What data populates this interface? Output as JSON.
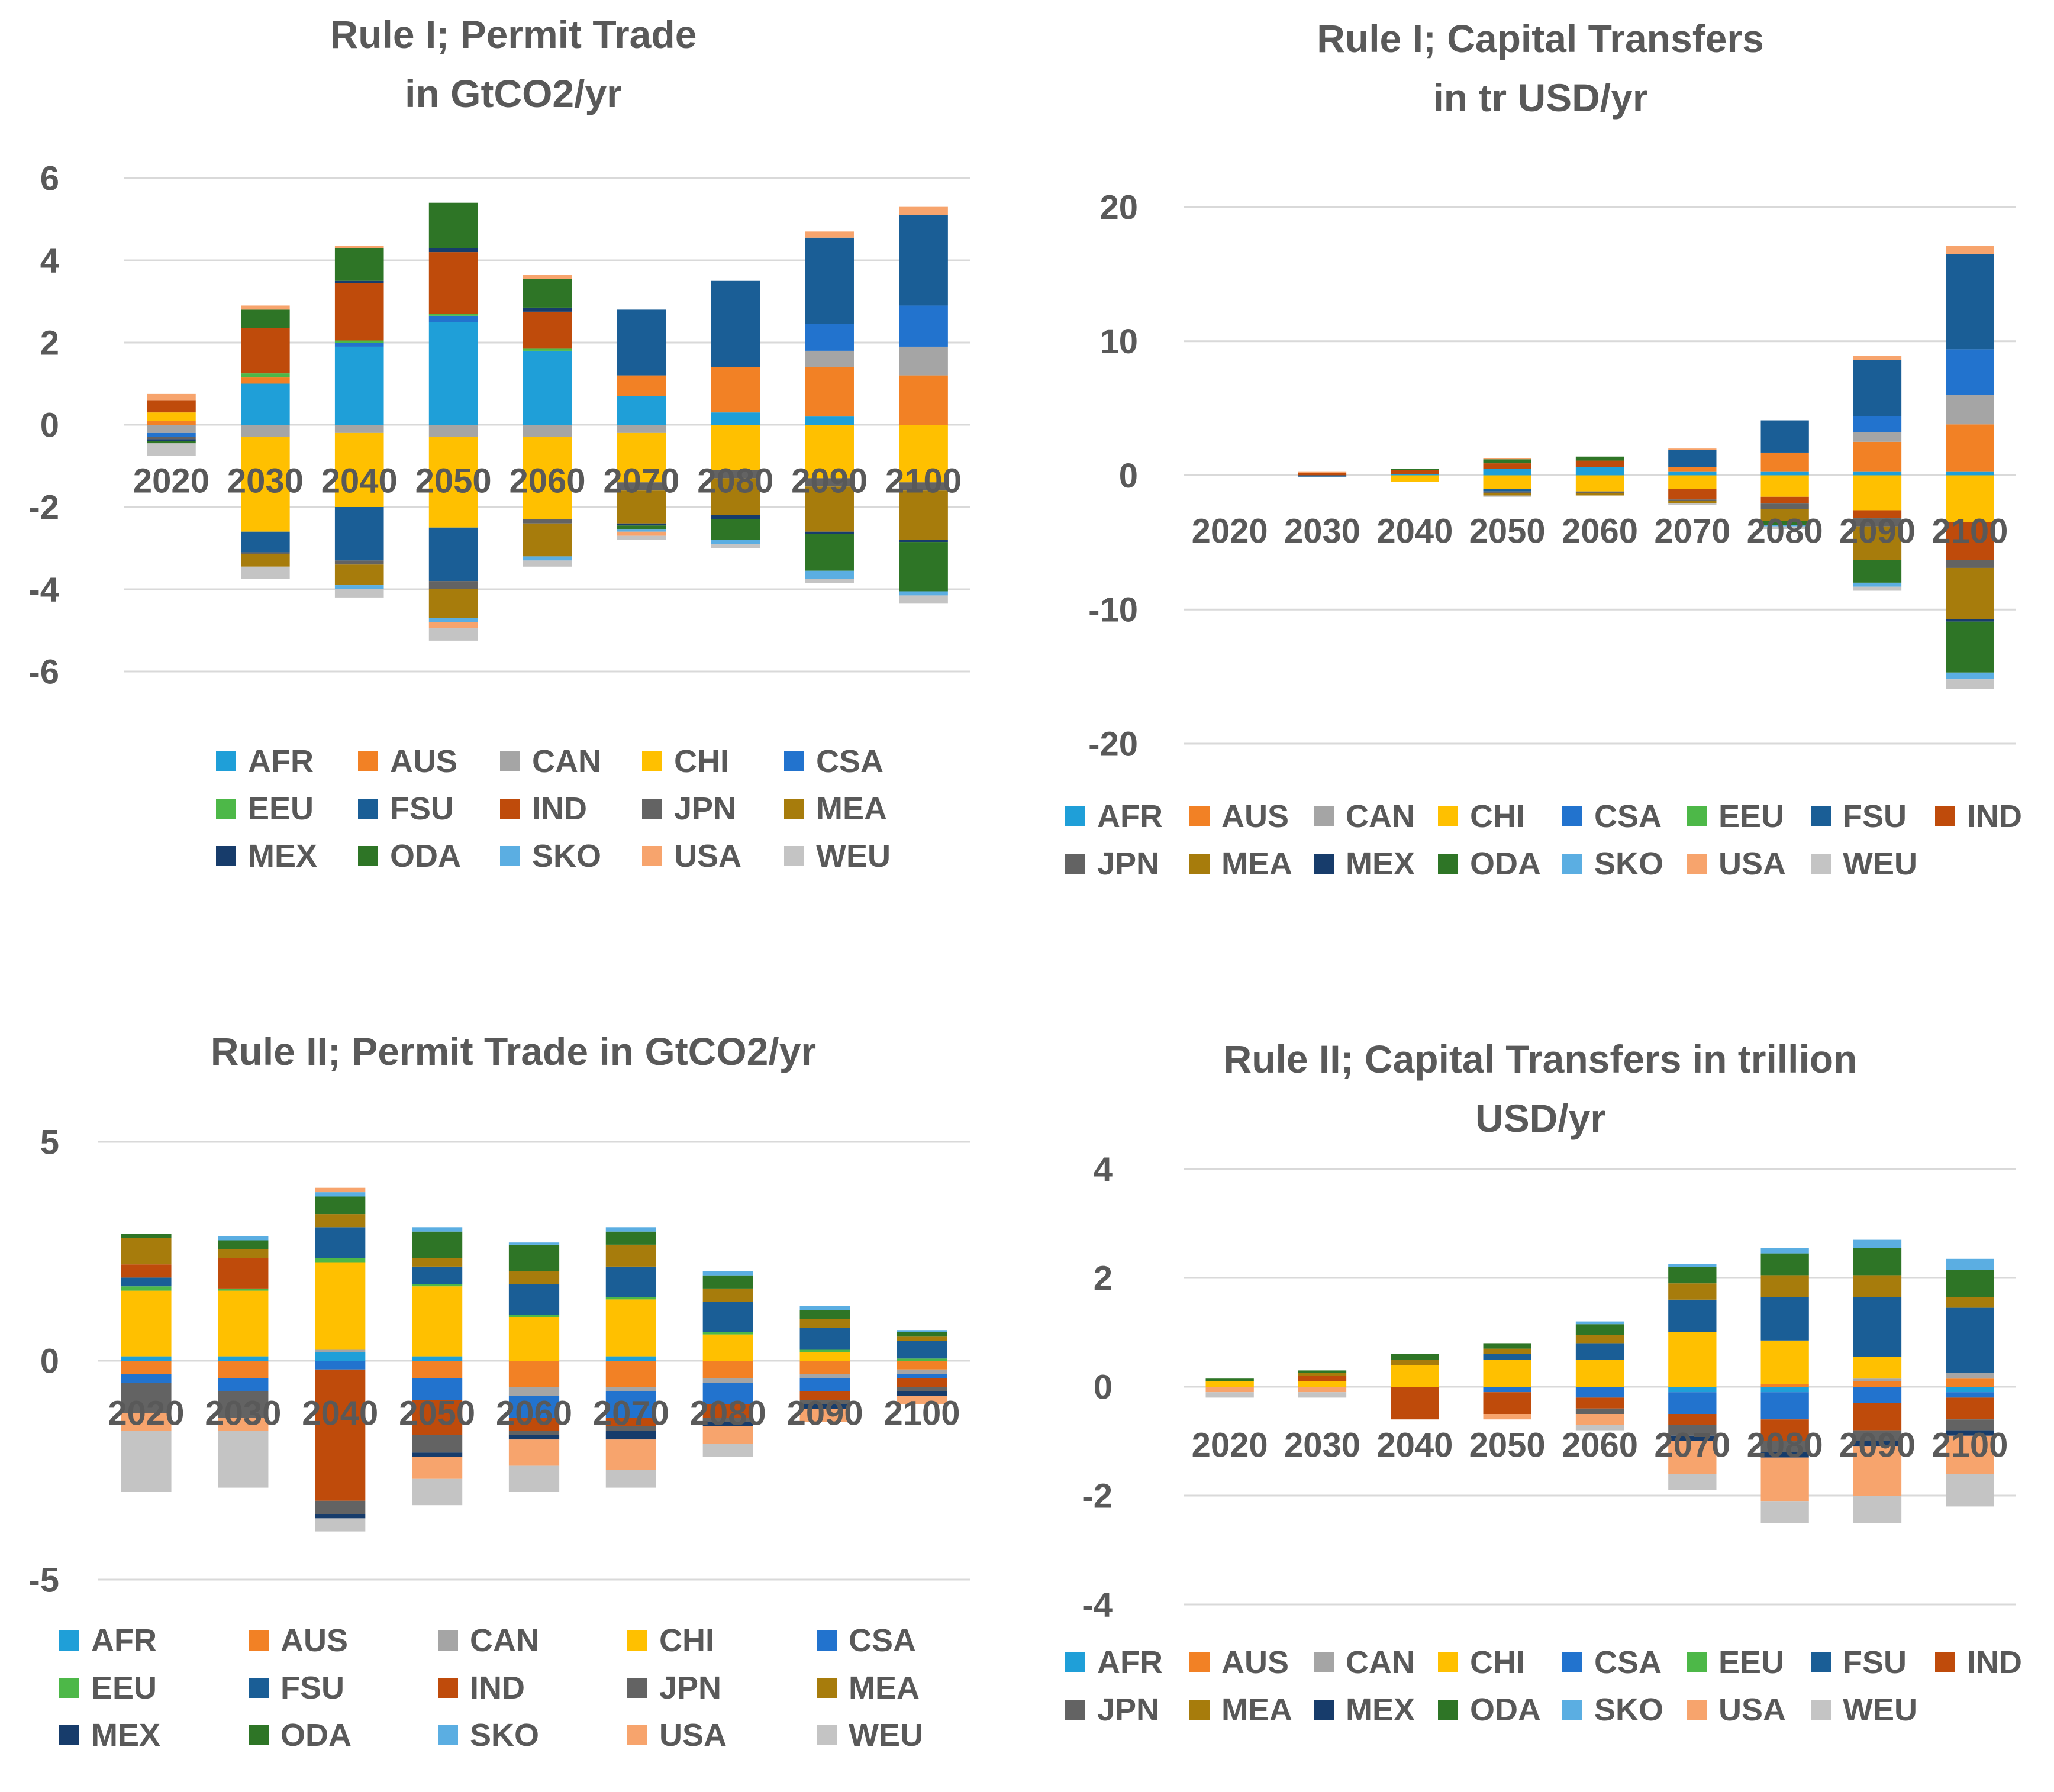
{
  "colors": {
    "AFR": "#1F9FD8",
    "AUS": "#F28125",
    "CAN": "#A5A5A5",
    "CHI": "#FFC000",
    "CSA": "#2273CE",
    "EEU": "#4DB848",
    "FSU": "#1A5E96",
    "IND": "#BF4B0B",
    "JPN": "#636363",
    "MEA": "#A77C0C",
    "MEX": "#173C6B",
    "ODA": "#2E7526",
    "SKO": "#5BAEE2",
    "USA": "#F7A46D",
    "WEU": "#C4C4C4"
  },
  "chart_data": [
    {
      "type": "bar",
      "stacked": true,
      "title_lines": [
        "Rule I;  Permit Trade",
        "in GtCO2/yr"
      ],
      "categories": [
        "2020",
        "2030",
        "2040",
        "2050",
        "2060",
        "2070",
        "2080",
        "2090",
        "2100"
      ],
      "ylim": [
        -6,
        6
      ],
      "yticks": [
        6,
        4,
        2,
        0,
        -2,
        -4,
        -6
      ],
      "ytick_labels": [
        "6",
        "4",
        "2",
        "0",
        "-2",
        "-4",
        "-6"
      ],
      "legend": [
        "AFR",
        "AUS",
        "CAN",
        "CHI",
        "CSA",
        "EEU",
        "FSU",
        "IND",
        "JPN",
        "MEA",
        "MEX",
        "ODA",
        "SKO",
        "USA",
        "WEU"
      ],
      "series": [
        {
          "name": "AFR",
          "values": [
            0,
            1.0,
            1.9,
            2.5,
            1.8,
            0.7,
            0.3,
            0.2,
            0
          ]
        },
        {
          "name": "AUS",
          "values": [
            0.1,
            0.15,
            0,
            0,
            0,
            0.5,
            1.1,
            1.2,
            1.2
          ]
        },
        {
          "name": "CAN",
          "values": [
            -0.2,
            -0.3,
            -0.2,
            -0.3,
            -0.3,
            -0.2,
            0,
            0.4,
            0.7
          ]
        },
        {
          "name": "CHI",
          "values": [
            0.2,
            -2.3,
            -1.8,
            -2.2,
            -2.0,
            -1.2,
            -1.1,
            -1.3,
            -1.4
          ]
        },
        {
          "name": "CSA",
          "values": [
            -0.1,
            0,
            0.1,
            0.15,
            0,
            0,
            0,
            0.65,
            1.0
          ]
        },
        {
          "name": "EEU",
          "values": [
            0,
            0.1,
            0.05,
            0.05,
            0.05,
            0,
            0,
            0,
            0
          ]
        },
        {
          "name": "FSU",
          "values": [
            0,
            -0.5,
            -1.3,
            -1.3,
            0,
            1.6,
            2.1,
            2.1,
            2.2
          ]
        },
        {
          "name": "IND",
          "values": [
            0.3,
            1.1,
            1.4,
            1.5,
            0.9,
            0,
            0,
            0,
            0
          ]
        },
        {
          "name": "JPN",
          "values": [
            -0.05,
            -0.05,
            -0.1,
            -0.2,
            -0.1,
            -0.2,
            -0.2,
            -0.2,
            -0.2
          ]
        },
        {
          "name": "MEA",
          "values": [
            0,
            -0.3,
            -0.5,
            -0.7,
            -0.8,
            -0.8,
            -0.9,
            -1.1,
            -1.2
          ]
        },
        {
          "name": "MEX",
          "values": [
            -0.05,
            0,
            0.05,
            0.1,
            0.1,
            -0.05,
            -0.1,
            -0.05,
            -0.05
          ]
        },
        {
          "name": "ODA",
          "values": [
            -0.05,
            0.45,
            0.8,
            1.1,
            0.7,
            -0.1,
            -0.5,
            -0.9,
            -1.2
          ]
        },
        {
          "name": "SKO",
          "values": [
            0,
            0,
            -0.1,
            -0.1,
            -0.1,
            -0.05,
            -0.1,
            -0.2,
            -0.1
          ]
        },
        {
          "name": "USA",
          "values": [
            0.15,
            0.1,
            0.05,
            -0.15,
            0.1,
            -0.1,
            0,
            0.15,
            0.2
          ]
        },
        {
          "name": "WEU",
          "values": [
            -0.3,
            -0.3,
            -0.2,
            -0.3,
            -0.15,
            -0.1,
            -0.1,
            -0.1,
            -0.2
          ]
        }
      ]
    },
    {
      "type": "bar",
      "stacked": true,
      "title_lines": [
        "Rule I; Capital Transfers",
        "in tr USD/yr"
      ],
      "categories": [
        "2020",
        "2030",
        "2040",
        "2050",
        "2060",
        "2070",
        "2080",
        "2090",
        "2100"
      ],
      "ylim": [
        -20,
        20
      ],
      "yticks": [
        20,
        10,
        0,
        -10,
        -20
      ],
      "ytick_labels": [
        "20",
        "10",
        "0",
        "-10",
        "-20"
      ],
      "legend": [
        "AFR",
        "AUS",
        "CAN",
        "CHI",
        "CSA",
        "EEU",
        "FSU",
        "IND",
        "JPN",
        "MEA",
        "MEX",
        "ODA",
        "SKO",
        "USA",
        "WEU"
      ],
      "series": [
        {
          "name": "AFR",
          "values": [
            0,
            0,
            0.1,
            0.5,
            0.6,
            0.3,
            0.3,
            0.3,
            0.3
          ]
        },
        {
          "name": "AUS",
          "values": [
            0,
            0,
            0,
            0,
            0,
            0.3,
            1.4,
            2.2,
            3.5
          ]
        },
        {
          "name": "CAN",
          "values": [
            0,
            0,
            0,
            0,
            0,
            0,
            0,
            0.7,
            2.2
          ]
        },
        {
          "name": "CHI",
          "values": [
            0,
            0,
            -0.5,
            -1.0,
            -1.2,
            -1.0,
            -1.6,
            -2.6,
            -3.5
          ]
        },
        {
          "name": "CSA",
          "values": [
            0,
            0,
            0,
            0,
            0,
            0,
            0,
            1.2,
            3.4
          ]
        },
        {
          "name": "EEU",
          "values": [
            0,
            0,
            0,
            0,
            0,
            0,
            0,
            0,
            0
          ]
        },
        {
          "name": "FSU",
          "values": [
            0,
            -0.1,
            0,
            -0.2,
            0,
            1.3,
            2.4,
            4.2,
            7.1
          ]
        },
        {
          "name": "IND",
          "values": [
            0,
            0.2,
            0.3,
            0.4,
            0.5,
            -0.8,
            -0.5,
            -0.6,
            -2.8
          ]
        },
        {
          "name": "JPN",
          "values": [
            0,
            0,
            0,
            -0.1,
            -0.1,
            -0.1,
            -0.4,
            -0.6,
            -0.6
          ]
        },
        {
          "name": "MEA",
          "values": [
            0,
            0,
            0,
            -0.2,
            -0.2,
            -0.2,
            -0.9,
            -2.5,
            -3.8
          ]
        },
        {
          "name": "MEX",
          "values": [
            0,
            0,
            0,
            0,
            0,
            0,
            0,
            0,
            -0.2
          ]
        },
        {
          "name": "ODA",
          "values": [
            0,
            0,
            0.1,
            0.3,
            0.3,
            0,
            -0.3,
            -1.7,
            -3.8
          ]
        },
        {
          "name": "SKO",
          "values": [
            0,
            0,
            0,
            0,
            0,
            0,
            -0.1,
            -0.3,
            -0.5
          ]
        },
        {
          "name": "USA",
          "values": [
            0,
            0.1,
            0,
            0.1,
            0,
            0.1,
            0,
            0.3,
            0.6
          ]
        },
        {
          "name": "WEU",
          "values": [
            0,
            0,
            0,
            -0.1,
            0,
            -0.1,
            -0.2,
            -0.3,
            -0.7
          ]
        }
      ]
    },
    {
      "type": "bar",
      "stacked": true,
      "title_lines": [
        "Rule II;  Permit Trade in GtCO2/yr"
      ],
      "categories": [
        "2020",
        "2030",
        "2040",
        "2050",
        "2060",
        "2070",
        "2080",
        "2090",
        "2100"
      ],
      "ylim": [
        -5,
        5
      ],
      "yticks": [
        5,
        0,
        -5
      ],
      "ytick_labels": [
        "5",
        "0",
        "-5"
      ],
      "legend": [
        "AFR",
        "AUS",
        "CAN",
        "CHI",
        "CSA",
        "EEU",
        "FSU",
        "IND",
        "JPN",
        "MEA",
        "MEX",
        "ODA",
        "SKO",
        "USA",
        "WEU"
      ],
      "series": [
        {
          "name": "AFR",
          "values": [
            0.1,
            0.1,
            0.2,
            0.1,
            0,
            0.1,
            0,
            0,
            0
          ]
        },
        {
          "name": "AUS",
          "values": [
            -0.3,
            -0.4,
            0,
            -0.4,
            -0.6,
            -0.6,
            -0.4,
            -0.3,
            -0.2
          ]
        },
        {
          "name": "CAN",
          "values": [
            0,
            0,
            0.05,
            0,
            -0.2,
            -0.1,
            -0.1,
            -0.1,
            -0.1
          ]
        },
        {
          "name": "CHI",
          "values": [
            1.5,
            1.5,
            2.0,
            1.6,
            1.0,
            1.3,
            0.6,
            0.2,
            0
          ]
        },
        {
          "name": "CSA",
          "values": [
            -0.2,
            -0.3,
            -0.2,
            -0.5,
            -0.5,
            -0.6,
            -0.5,
            -0.3,
            -0.1
          ]
        },
        {
          "name": "EEU",
          "values": [
            0.1,
            0.05,
            0.1,
            0.05,
            0.05,
            0.05,
            0.05,
            0.05,
            0.05
          ]
        },
        {
          "name": "FSU",
          "values": [
            0.2,
            0,
            0.7,
            0.4,
            0.7,
            0.7,
            0.7,
            0.5,
            0.4
          ]
        },
        {
          "name": "IND",
          "values": [
            0.3,
            0.7,
            -3.0,
            -0.8,
            -0.3,
            -0.2,
            -0.3,
            -0.2,
            -0.2
          ]
        },
        {
          "name": "JPN",
          "values": [
            -0.7,
            -0.6,
            -0.3,
            -0.4,
            -0.1,
            -0.1,
            -0.1,
            -0.1,
            -0.1
          ]
        },
        {
          "name": "MEA",
          "values": [
            0.6,
            0.2,
            0.3,
            0.2,
            0.3,
            0.5,
            0.3,
            0.2,
            0.1
          ]
        },
        {
          "name": "MEX",
          "values": [
            0,
            0,
            -0.1,
            -0.1,
            -0.1,
            -0.2,
            -0.1,
            -0.1,
            -0.1
          ]
        },
        {
          "name": "ODA",
          "values": [
            0.1,
            0.2,
            0.4,
            0.6,
            0.6,
            0.3,
            0.3,
            0.2,
            0.1
          ]
        },
        {
          "name": "SKO",
          "values": [
            0,
            0.1,
            0.1,
            0.1,
            0.05,
            0.1,
            0.1,
            0.1,
            0.05
          ]
        },
        {
          "name": "USA",
          "values": [
            -0.4,
            -0.3,
            0.1,
            -0.5,
            -0.6,
            -0.7,
            -0.4,
            -0.3,
            -0.2
          ]
        },
        {
          "name": "WEU",
          "values": [
            -1.4,
            -1.3,
            -0.3,
            -0.6,
            -0.6,
            -0.4,
            -0.3,
            0,
            0
          ]
        }
      ]
    },
    {
      "type": "bar",
      "stacked": true,
      "title_lines": [
        "Rule II; Capital Transfers in trillion",
        "USD/yr"
      ],
      "categories": [
        "2020",
        "2030",
        "2040",
        "2050",
        "2060",
        "2070",
        "2080",
        "2090",
        "2100"
      ],
      "ylim": [
        -4,
        4
      ],
      "yticks": [
        4,
        2,
        0,
        -2,
        -4
      ],
      "ytick_labels": [
        "4",
        "2",
        "0",
        "-2",
        "-4"
      ],
      "legend": [
        "AFR",
        "AUS",
        "CAN",
        "CHI",
        "CSA",
        "EEU",
        "FSU",
        "IND",
        "JPN",
        "MEA",
        "MEX",
        "ODA",
        "SKO",
        "USA",
        "WEU"
      ],
      "series": [
        {
          "name": "AFR",
          "values": [
            0,
            0,
            0,
            0,
            0,
            -0.1,
            -0.1,
            0,
            -0.1
          ]
        },
        {
          "name": "AUS",
          "values": [
            0,
            0,
            0,
            0,
            0,
            0,
            0.05,
            0.1,
            0.15
          ]
        },
        {
          "name": "CAN",
          "values": [
            0,
            0,
            0,
            0,
            0,
            0,
            0,
            0.05,
            0.1
          ]
        },
        {
          "name": "CHI",
          "values": [
            0.1,
            0.1,
            0.4,
            0.5,
            0.5,
            1.0,
            0.8,
            0.4,
            0
          ]
        },
        {
          "name": "CSA",
          "values": [
            0,
            0,
            0,
            -0.1,
            -0.2,
            -0.4,
            -0.5,
            -0.3,
            -0.1
          ]
        },
        {
          "name": "EEU",
          "values": [
            0,
            0,
            0,
            0,
            0,
            0,
            0,
            0,
            0
          ]
        },
        {
          "name": "FSU",
          "values": [
            0,
            0,
            0,
            0.1,
            0.3,
            0.6,
            0.8,
            1.1,
            1.2
          ]
        },
        {
          "name": "IND",
          "values": [
            0,
            0.1,
            -0.6,
            -0.4,
            -0.2,
            -0.2,
            -0.4,
            -0.5,
            -0.4
          ]
        },
        {
          "name": "JPN",
          "values": [
            0,
            0,
            0,
            0,
            -0.1,
            -0.2,
            -0.2,
            -0.2,
            -0.2
          ]
        },
        {
          "name": "MEA",
          "values": [
            0,
            0.05,
            0.1,
            0.1,
            0.15,
            0.3,
            0.4,
            0.4,
            0.2
          ]
        },
        {
          "name": "MEX",
          "values": [
            0,
            0,
            0,
            0,
            0,
            -0.1,
            -0.1,
            -0.1,
            -0.1
          ]
        },
        {
          "name": "ODA",
          "values": [
            0.05,
            0.05,
            0.1,
            0.1,
            0.2,
            0.3,
            0.4,
            0.5,
            0.5
          ]
        },
        {
          "name": "SKO",
          "values": [
            0,
            0,
            0,
            0,
            0.05,
            0.05,
            0.1,
            0.15,
            0.2
          ]
        },
        {
          "name": "USA",
          "values": [
            -0.1,
            -0.1,
            0,
            -0.1,
            -0.2,
            -0.6,
            -0.8,
            -0.9,
            -0.7
          ]
        },
        {
          "name": "WEU",
          "values": [
            -0.1,
            -0.1,
            0,
            0,
            -0.1,
            -0.3,
            -0.4,
            -0.5,
            -0.6
          ]
        }
      ]
    }
  ]
}
